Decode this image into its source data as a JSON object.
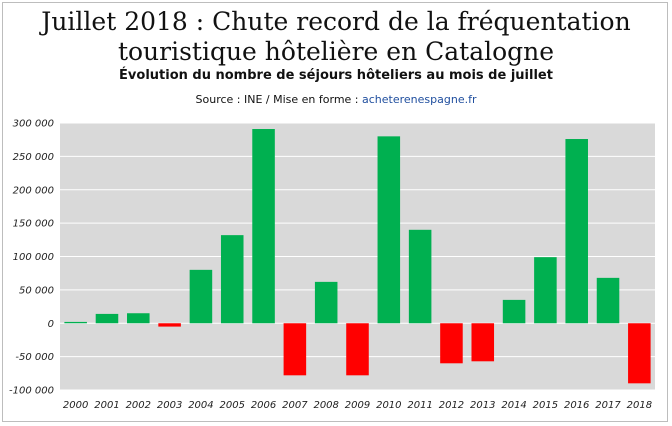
{
  "title_line1": "Juillet 2018 : Chute record de la fréquentation",
  "title_line2": "touristique hôtelière en Catalogne",
  "subtitle": "Évolution du nombre de séjours hôteliers au mois de juillet",
  "source_prefix": "Source : INE / Mise en forme : ",
  "source_link": "acheterenespagne.fr",
  "colors": {
    "positive": "#00b050",
    "negative": "#ff0000",
    "plot_bg": "#d9d9d9",
    "grid": "#ffffff",
    "link": "#1f4e9e"
  },
  "chart_data": {
    "type": "bar",
    "categories": [
      "2000",
      "2001",
      "2002",
      "2003",
      "2004",
      "2005",
      "2006",
      "2007",
      "2008",
      "2009",
      "2010",
      "2011",
      "2012",
      "2013",
      "2014",
      "2015",
      "2016",
      "2017",
      "2018"
    ],
    "values": [
      2000,
      14000,
      15000,
      -5000,
      80000,
      132000,
      291000,
      -78000,
      62000,
      -78000,
      280000,
      140000,
      -60000,
      -57000,
      35000,
      99000,
      276000,
      68000,
      -90000
    ],
    "ylim": [
      -100000,
      300000
    ],
    "yticks": [
      300000,
      250000,
      200000,
      150000,
      100000,
      50000,
      0,
      -50000,
      -100000
    ],
    "ytick_labels": [
      "300 000",
      "250 000",
      "200 000",
      "150 000",
      "100 000",
      "50 000",
      "0",
      "-50 000",
      "-100 000"
    ],
    "grid": true,
    "legend": false
  }
}
